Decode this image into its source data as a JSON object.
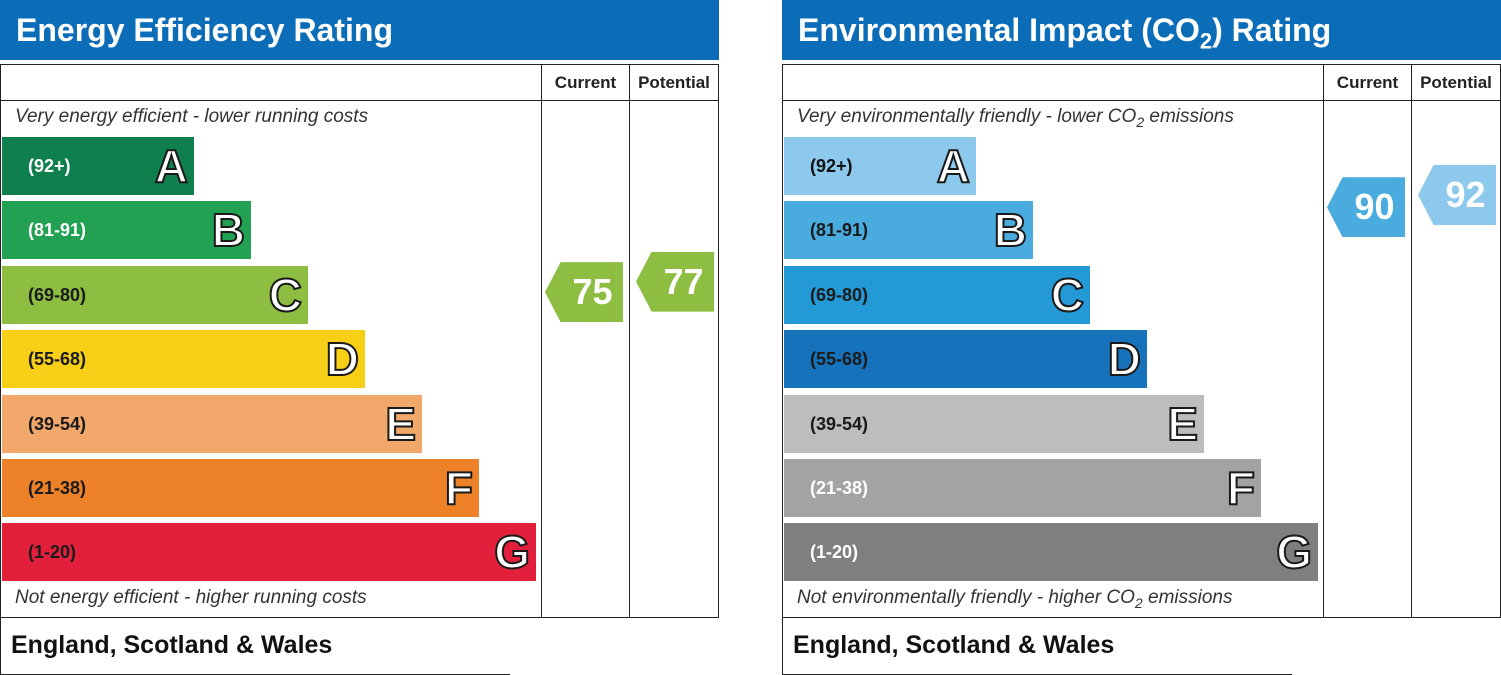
{
  "chart_data": [
    {
      "type": "bar",
      "title": "Energy Efficiency Rating",
      "columns": [
        "Current",
        "Potential"
      ],
      "top_caption": "Very energy efficient - lower running costs",
      "bottom_caption": "Not energy efficient - higher running costs",
      "footer": "England, Scotland & Wales",
      "bands": [
        {
          "letter": "A",
          "range": "(92+)",
          "color": "#0e7f4d",
          "text_color": "#ffffff"
        },
        {
          "letter": "B",
          "range": "(81-91)",
          "color": "#22a152",
          "text_color": "#ffffff"
        },
        {
          "letter": "C",
          "range": "(69-80)",
          "color": "#8dbd41",
          "text_color": "#1a1a1a"
        },
        {
          "letter": "D",
          "range": "(55-68)",
          "color": "#f6cf16",
          "text_color": "#1a1a1a"
        },
        {
          "letter": "E",
          "range": "(39-54)",
          "color": "#f2a86b",
          "text_color": "#1a1a1a"
        },
        {
          "letter": "F",
          "range": "(21-38)",
          "color": "#ed8127",
          "text_color": "#1a1a1a"
        },
        {
          "letter": "G",
          "range": "(1-20)",
          "color": "#e3203c",
          "text_color": "#1a1a1a"
        }
      ],
      "ratings": {
        "current": {
          "value": 75,
          "color": "#8dbd41"
        },
        "potential": {
          "value": 77,
          "color": "#8dbd41"
        }
      }
    },
    {
      "type": "bar",
      "title_parts": [
        "Environmental Impact (CO",
        "2",
        ") Rating"
      ],
      "columns": [
        "Current",
        "Potential"
      ],
      "top_caption_parts": [
        "Very environmentally friendly - lower CO",
        "2",
        " emissions"
      ],
      "bottom_caption_parts": [
        "Not environmentally friendly - higher CO",
        "2",
        " emissions"
      ],
      "footer": "England, Scotland & Wales",
      "bands": [
        {
          "letter": "A",
          "range": "(92+)",
          "color": "#8dc9ec",
          "text_color": "#111111"
        },
        {
          "letter": "B",
          "range": "(81-91)",
          "color": "#4aabdf",
          "text_color": "#1a1a1a"
        },
        {
          "letter": "C",
          "range": "(69-80)",
          "color": "#239ad6",
          "text_color": "#1a1a1a"
        },
        {
          "letter": "D",
          "range": "(55-68)",
          "color": "#1673bb",
          "text_color": "#1a1a1a"
        },
        {
          "letter": "E",
          "range": "(39-54)",
          "color": "#bdbdbb",
          "text_color": "#1a1a1a"
        },
        {
          "letter": "F",
          "range": "(21-38)",
          "color": "#a3a3a1",
          "text_color": "#ffffff"
        },
        {
          "letter": "G",
          "range": "(1-20)",
          "color": "#7f7f7d",
          "text_color": "#ffffff"
        }
      ],
      "ratings": {
        "current": {
          "value": 90,
          "color": "#4aabdf"
        },
        "potential": {
          "value": 92,
          "color": "#8dc9ec"
        }
      }
    }
  ]
}
